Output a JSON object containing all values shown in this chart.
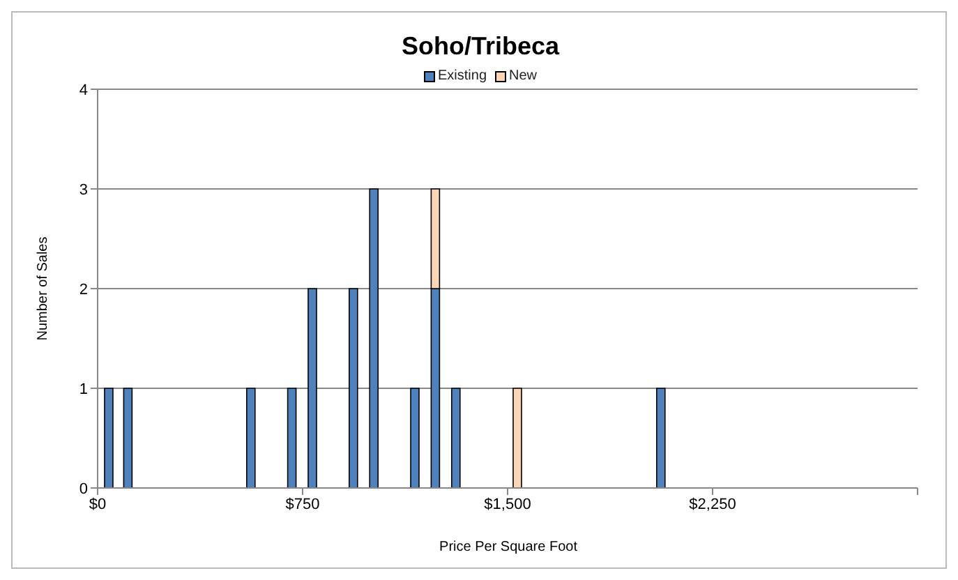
{
  "chart_data": {
    "type": "bar",
    "title": "Soho/Tribeca",
    "xlabel": "Price Per Square Foot",
    "ylabel": "Number of Sales",
    "x": [
      40,
      110,
      560,
      710,
      785,
      935,
      1010,
      1160,
      1235,
      1310,
      1535,
      2060
    ],
    "series": [
      {
        "name": "Existing",
        "color": "#4f81bd",
        "values": [
          1,
          1,
          1,
          1,
          2,
          2,
          3,
          1,
          2,
          1,
          null,
          1
        ]
      },
      {
        "name": "New",
        "color": "#fbd5b5",
        "values": [
          null,
          null,
          null,
          null,
          null,
          null,
          null,
          null,
          1,
          null,
          1,
          null
        ]
      }
    ],
    "stacked": true,
    "xlim": [
      0,
      3000
    ],
    "xticks": [
      {
        "value": 0,
        "label": "$0"
      },
      {
        "value": 750,
        "label": "$750"
      },
      {
        "value": 1500,
        "label": "$1,500"
      },
      {
        "value": 2250,
        "label": "$2,250"
      },
      {
        "value": 3000,
        "label": null
      }
    ],
    "ylim": [
      0,
      4
    ],
    "yticks": [
      0,
      1,
      2,
      3,
      4
    ],
    "grid": "y",
    "legend": "top"
  }
}
